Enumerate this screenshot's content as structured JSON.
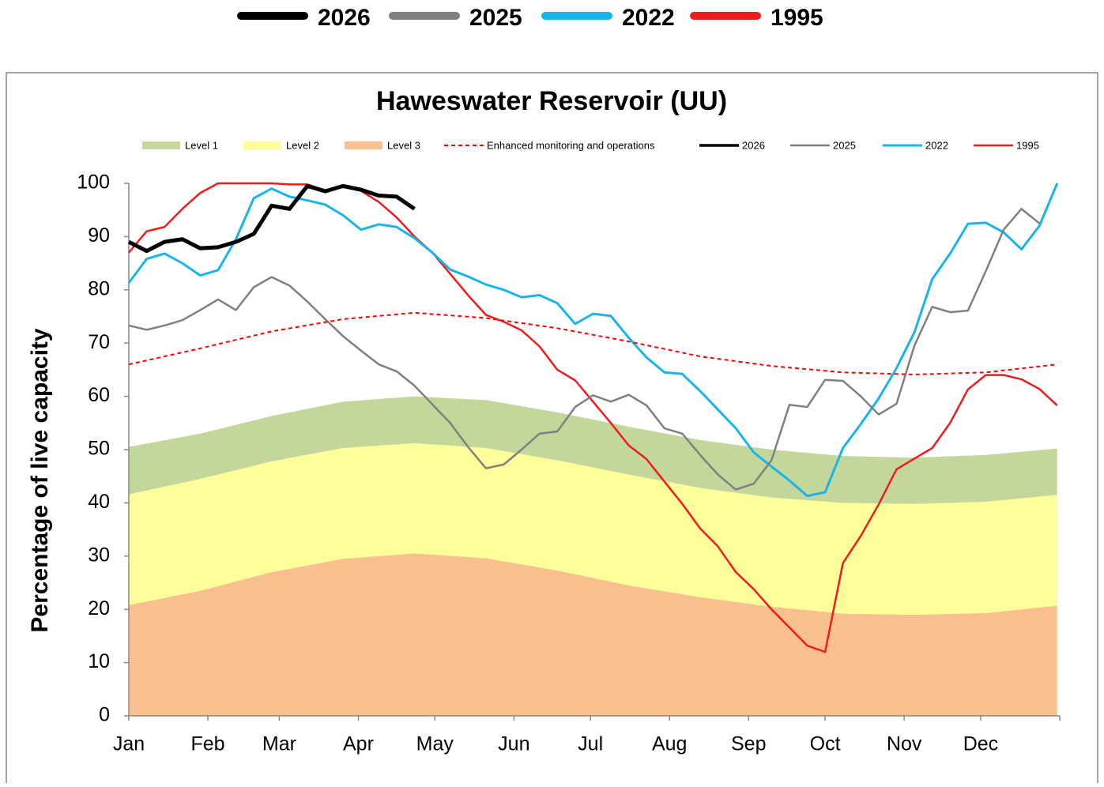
{
  "chart_data": {
    "type": "line",
    "title": "Haweswater Reservoir (UU)",
    "y_label": "Percentage of live capacity",
    "xlim": [
      0,
      365
    ],
    "ylim": [
      0,
      100
    ],
    "yticks": [
      0,
      10,
      20,
      30,
      40,
      50,
      60,
      70,
      80,
      90,
      100
    ],
    "xticks": [
      {
        "value": 0,
        "label": "Jan"
      },
      {
        "value": 31,
        "label": "Feb"
      },
      {
        "value": 59,
        "label": "Mar"
      },
      {
        "value": 90,
        "label": "Apr"
      },
      {
        "value": 120,
        "label": "May"
      },
      {
        "value": 151,
        "label": "Jun"
      },
      {
        "value": 181,
        "label": "Jul"
      },
      {
        "value": 212,
        "label": "Aug"
      },
      {
        "value": 243,
        "label": "Sep"
      },
      {
        "value": 273,
        "label": "Oct"
      },
      {
        "value": 304,
        "label": "Nov"
      },
      {
        "value": 334,
        "label": "Dec"
      }
    ],
    "x": [
      0,
      7,
      14,
      21,
      28,
      35,
      42,
      49,
      56,
      63,
      70,
      77,
      84,
      91,
      98,
      105,
      112,
      119,
      126,
      133,
      140,
      147,
      154,
      161,
      168,
      175,
      182,
      189,
      196,
      203,
      210,
      217,
      224,
      231,
      238,
      245,
      252,
      259,
      266,
      273,
      280,
      287,
      294,
      301,
      308,
      315,
      322,
      329,
      336,
      343,
      350,
      357,
      364
    ],
    "stacked_areas": true,
    "series": [
      {
        "name": "Level 1",
        "kind": "area",
        "color": "#c4d79b",
        "x": [
          0,
          28,
          56,
          84,
          112,
          140,
          168,
          196,
          224,
          252,
          280,
          308,
          336,
          364
        ],
        "values": [
          8.9,
          8.5,
          8.5,
          8.7,
          8.8,
          9,
          9,
          9,
          9,
          9,
          8.8,
          8.7,
          8.8,
          8.7
        ]
      },
      {
        "name": "Level 2",
        "kind": "area",
        "color": "#ffff99",
        "x": [
          0,
          28,
          56,
          84,
          112,
          140,
          168,
          196,
          224,
          252,
          280,
          308,
          336,
          364
        ],
        "values": [
          20.8,
          21,
          20.8,
          20.8,
          20.7,
          20.7,
          20.7,
          20.8,
          20.5,
          20.5,
          20.8,
          20.8,
          20.9,
          20.8
        ]
      },
      {
        "name": "Level 3",
        "kind": "area",
        "color": "#fabf8f",
        "x": [
          0,
          28,
          56,
          84,
          112,
          140,
          168,
          196,
          224,
          252,
          280,
          308,
          336,
          364
        ],
        "values": [
          20.8,
          23.5,
          27,
          29.5,
          30.5,
          29.6,
          27.3,
          24.5,
          22.3,
          20.5,
          19.2,
          19,
          19.3,
          20.7
        ]
      },
      {
        "name": "Enhanced monitoring and operations",
        "kind": "line",
        "dashed": true,
        "line_width": 2,
        "color": "#ff0000",
        "x": [
          0,
          28,
          56,
          84,
          112,
          140,
          168,
          196,
          224,
          252,
          280,
          308,
          336,
          364
        ],
        "values": [
          66,
          69,
          72.2,
          74.5,
          75.7,
          74.7,
          72.8,
          70.3,
          67.5,
          65.7,
          64.5,
          64.1,
          64.5,
          66
        ]
      },
      {
        "name": "2026",
        "kind": "line",
        "headline": true,
        "line_width": 5,
        "color": "#000000",
        "values": [
          89,
          87.3,
          89,
          89.5,
          87.8,
          88,
          89,
          90.5,
          95.8,
          95.2,
          99.5,
          98.5,
          99.5,
          98.8,
          97.7,
          97.5,
          95.2,
          null,
          null,
          null,
          null,
          null,
          null,
          null,
          null,
          null,
          null,
          null,
          null,
          null,
          null,
          null,
          null,
          null,
          null,
          null,
          null,
          null,
          null,
          null,
          null,
          null,
          null,
          null,
          null,
          null,
          null,
          null,
          null,
          null,
          null,
          null,
          null
        ]
      },
      {
        "name": "2025",
        "kind": "line",
        "headline": true,
        "line_width": 2.5,
        "color": "#808080",
        "values": [
          73.3,
          72.5,
          73.3,
          74.3,
          76.2,
          78.2,
          76.2,
          80.5,
          82.4,
          80.8,
          77.8,
          74.5,
          71.3,
          68.6,
          66,
          64.7,
          62,
          58.5,
          55,
          50.5,
          46.5,
          47.2,
          50,
          53,
          53.4,
          58,
          60.2,
          59,
          60.3,
          58.3,
          54,
          53,
          49,
          45.3,
          42.5,
          43.6,
          48,
          58.4,
          58,
          63.1,
          62.9,
          60,
          56.6,
          58.6,
          69.5,
          76.8,
          75.8,
          76.1,
          83.5,
          91.3,
          95.2,
          92.5,
          null
        ]
      },
      {
        "name": "2022",
        "kind": "line",
        "headline": true,
        "line_width": 3,
        "color": "#18b4ea",
        "values": [
          81.3,
          85.8,
          86.8,
          85,
          82.7,
          83.7,
          89.5,
          97.2,
          99,
          97.5,
          96.8,
          96,
          94,
          91.3,
          92.3,
          91.8,
          89.7,
          87,
          83.8,
          82.5,
          81,
          80,
          78.6,
          79,
          77.5,
          73.6,
          75.5,
          75.1,
          71,
          67.3,
          64.5,
          64.2,
          61,
          57.5,
          54,
          49.5,
          46.8,
          44.2,
          41.3,
          42,
          50.3,
          54.8,
          59.6,
          65.3,
          72,
          82,
          86.8,
          92.4,
          92.6,
          90.8,
          87.6,
          92,
          100
        ]
      },
      {
        "name": "1995",
        "kind": "line",
        "headline": true,
        "line_width": 2.5,
        "color": "#ee1c1c",
        "values": [
          87,
          91,
          91.8,
          95.2,
          98.2,
          100,
          100,
          100,
          100,
          99.8,
          99.8,
          98.7,
          99.3,
          98.6,
          96.5,
          93.6,
          90,
          87,
          83,
          79,
          75.3,
          74,
          72.4,
          69.4,
          65,
          63,
          59,
          55,
          50.8,
          48.2,
          44,
          39.8,
          35.2,
          31.8,
          27,
          23.8,
          20,
          16.6,
          13.2,
          12,
          28.7,
          33.8,
          39.7,
          46.3,
          48.3,
          50.3,
          55,
          61.3,
          64,
          64,
          63.2,
          61.4,
          58.3
        ]
      }
    ]
  }
}
